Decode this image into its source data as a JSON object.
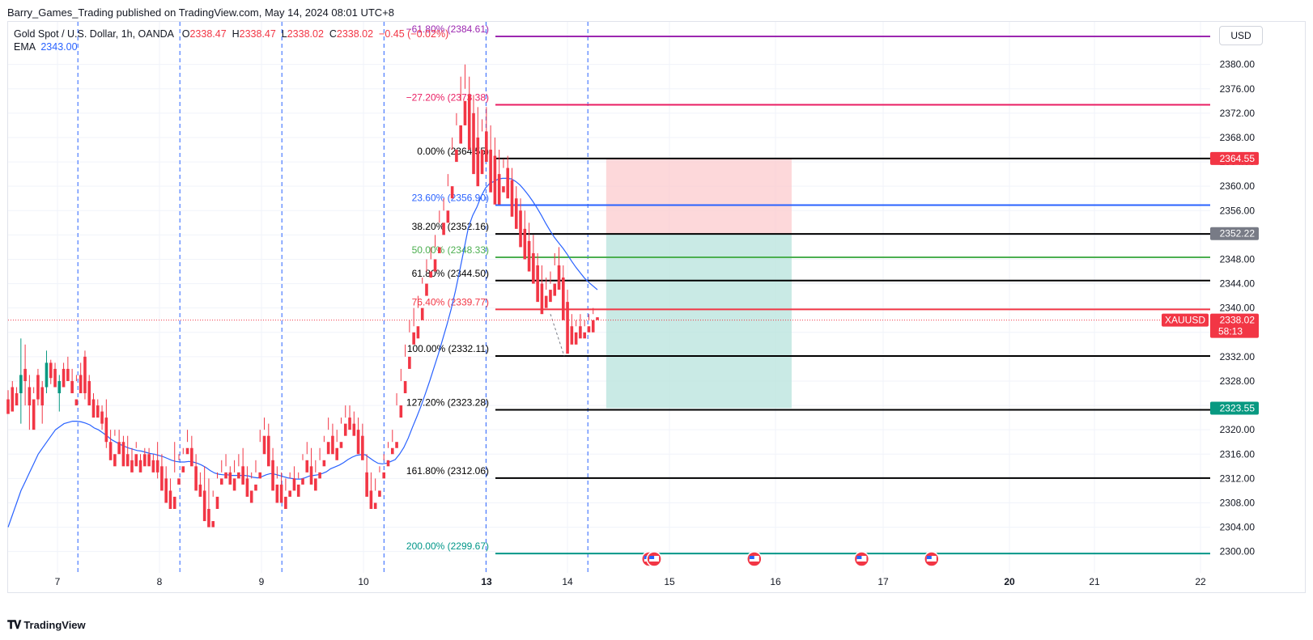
{
  "header": {
    "published": "Barry_Games_Trading published on TradingView.com, May 14, 2024 08:01 UTC+8"
  },
  "legend": {
    "symbol": "Gold Spot / U.S. Dollar, 1h, OANDA",
    "o_label": "O",
    "o_value": "2338.47",
    "h_label": "H",
    "h_value": "2338.47",
    "l_label": "L",
    "l_value": "2338.02",
    "c_label": "C",
    "c_value": "2338.02",
    "change": "−0.45 (−0.02%)",
    "ema_label": "EMA",
    "ema_value": "2343.00"
  },
  "currency": "USD",
  "branding": {
    "name": "TradingView",
    "logo": "tradingview-logo"
  },
  "colors": {
    "up": "#089981",
    "down": "#f23645",
    "ema": "#2962ff",
    "stop_zone": "#fccbcd",
    "target_zone": "#bce5df"
  },
  "chart_data": {
    "type": "candlestick",
    "symbol": "XAUUSD",
    "timeframe": "1h",
    "ylim": [
      2296.5,
      2387
    ],
    "y_ticks": [
      "2300.00",
      "2304.00",
      "2308.00",
      "2312.00",
      "2316.00",
      "2320.00",
      "2324.00",
      "2328.00",
      "2332.00",
      "2336.00",
      "2340.00",
      "2344.00",
      "2348.00",
      "2352.00",
      "2356.00",
      "2360.00",
      "2364.00",
      "2368.00",
      "2372.00",
      "2376.00",
      "2380.00"
    ],
    "x_ticks": [
      {
        "label": "7",
        "day": 7,
        "bold": false
      },
      {
        "label": "8",
        "day": 8,
        "bold": false
      },
      {
        "label": "9",
        "day": 9,
        "bold": false
      },
      {
        "label": "10",
        "day": 10,
        "bold": false
      },
      {
        "label": "13",
        "day": 13,
        "bold": true
      },
      {
        "label": "14",
        "day": 14,
        "bold": false
      },
      {
        "label": "15",
        "day": 15,
        "bold": false
      },
      {
        "label": "16",
        "day": 16,
        "bold": false
      },
      {
        "label": "17",
        "day": 17,
        "bold": false
      },
      {
        "label": "20",
        "day": 20,
        "bold": true
      },
      {
        "label": "21",
        "day": 21,
        "bold": false
      },
      {
        "label": "22",
        "day": 22,
        "bold": false
      }
    ],
    "session_lines": [
      7.2,
      8.2,
      9.2,
      10.2,
      12.98,
      14.2
    ],
    "price": {
      "value": "2338.02",
      "symbol": "XAUUSD",
      "countdown": "58:13"
    },
    "price_labels": [
      {
        "value": "2364.55",
        "y": 2364.55,
        "color": "#f23645"
      },
      {
        "value": "2352.22",
        "y": 2352.22,
        "color": "#787b86"
      },
      {
        "value": "2323.55",
        "y": 2323.55,
        "color": "#089981"
      }
    ],
    "fib_levels": [
      {
        "label": "−61.80% (2384.61)",
        "y": 2384.61,
        "color": "#9c27b0"
      },
      {
        "label": "−27.20% (2373.38)",
        "y": 2373.38,
        "color": "#e91e63"
      },
      {
        "label": "0.00% (2364.55)",
        "y": 2364.55,
        "color": "#000000"
      },
      {
        "label": "23.60% (2356.90)",
        "y": 2356.9,
        "color": "#2962ff"
      },
      {
        "label": "38.20% (2352.16)",
        "y": 2352.16,
        "color": "#000000"
      },
      {
        "label": "50.00% (2348.33)",
        "y": 2348.33,
        "color": "#4caf50"
      },
      {
        "label": "61.80% (2344.50)",
        "y": 2344.5,
        "color": "#000000"
      },
      {
        "label": "76.40% (2339.77)",
        "y": 2339.77,
        "color": "#f23645"
      },
      {
        "label": "100.00% (2332.11)",
        "y": 2332.11,
        "color": "#000000"
      },
      {
        "label": "127.20% (2323.28)",
        "y": 2323.28,
        "color": "#000000"
      },
      {
        "label": "161.80% (2312.06)",
        "y": 2312.06,
        "color": "#000000"
      },
      {
        "label": "200.00% (2299.67)",
        "y": 2299.67,
        "color": "#009688"
      }
    ],
    "position": {
      "entry": 2352.22,
      "stop": 2364.55,
      "target": 2323.55,
      "x_start": 14.38,
      "x_end": 16.15
    },
    "event_days": [
      14.8,
      14.85,
      15.8,
      16.8,
      18.15
    ],
    "candles": [
      [
        2325.0,
        2326.5,
        2323.6,
        2322.6
      ],
      [
        2327.0,
        2328.0,
        2326.0,
        2323.0
      ],
      [
        2326.0,
        2327.0,
        2325.0,
        2324.0
      ],
      [
        2326.0,
        2335.0,
        2321.0,
        2329.0
      ],
      [
        2330.0,
        2334.0,
        2324.0,
        2328.0
      ],
      [
        2327.0,
        2329.0,
        2320.0,
        2324.0
      ],
      [
        2325.0,
        2327.0,
        2326.0,
        2320.0
      ],
      [
        2329.0,
        2330.0,
        2324.0,
        2325.0
      ],
      [
        2327.0,
        2328.0,
        2321.0,
        2324.0
      ],
      [
        2327.0,
        2333.0,
        2326.0,
        2331.0
      ],
      [
        2331.0,
        2331.5,
        2327.5,
        2328.5
      ],
      [
        2330.0,
        2331.0,
        2328.0,
        2327.0
      ],
      [
        2326.0,
        2329.0,
        2323.0,
        2328.0
      ],
      [
        2330.0,
        2331.0,
        2328.0,
        2327.0
      ],
      [
        2330.0,
        2332.0,
        2329.0,
        2328.0
      ],
      [
        2328.0,
        2330.0,
        2327.0,
        2326.0
      ],
      [
        2325.0,
        2329.0,
        2328.0,
        2324.0
      ],
      [
        2329.0,
        2331.0,
        2327.0,
        2326.0
      ],
      [
        2332.0,
        2333.0,
        2325.0,
        2326.0
      ],
      [
        2328.0,
        2329.0,
        2325.0,
        2324.0
      ],
      [
        2325.0,
        2326.0,
        2323.0,
        2322.0
      ],
      [
        2324.0,
        2325.0,
        2323.0,
        2322.0
      ],
      [
        2323.0,
        2324.0,
        2320.0,
        2321.0
      ],
      [
        2322.0,
        2325.0,
        2317.0,
        2318.0
      ],
      [
        2318.0,
        2320.0,
        2316.0,
        2315.0
      ],
      [
        2316.0,
        2319.0,
        2320.0,
        2314.0
      ],
      [
        2318.0,
        2320.0,
        2318.0,
        2316.0
      ],
      [
        2318.0,
        2319.0,
        2315.0,
        2314.0
      ],
      [
        2316.0,
        2319.0,
        2315.0,
        2314.0
      ],
      [
        2315.0,
        2317.0,
        2315.0,
        2313.0
      ],
      [
        2316.0,
        2318.0,
        2317.0,
        2314.0
      ],
      [
        2315.0,
        2316.0,
        2314.0,
        2313.0
      ],
      [
        2316.0,
        2317.0,
        2316.0,
        2314.0
      ],
      [
        2316.0,
        2317.0,
        2315.0,
        2314.0
      ],
      [
        2315.0,
        2316.0,
        2315.0,
        2313.0
      ],
      [
        2315.0,
        2318.0,
        2312.0,
        2313.0
      ],
      [
        2314.0,
        2316.0,
        2313.0,
        2310.0
      ],
      [
        2312.0,
        2314.0,
        2309.0,
        2308.0
      ],
      [
        2310.0,
        2312.0,
        2308.0,
        2307.0
      ],
      [
        2309.0,
        2318.0,
        2313.0,
        2307.0
      ],
      [
        2312.0,
        2316.0,
        2315.0,
        2311.0
      ],
      [
        2314.0,
        2317.0,
        2316.0,
        2313.0
      ],
      [
        2317.0,
        2320.0,
        2318.0,
        2316.0
      ],
      [
        2317.0,
        2319.0,
        2315.0,
        2314.0
      ],
      [
        2314.0,
        2316.0,
        2311.0,
        2310.0
      ],
      [
        2311.0,
        2313.0,
        2310.0,
        2309.0
      ],
      [
        2310.0,
        2314.0,
        2309.0,
        2305.0
      ],
      [
        2307.0,
        2312.0,
        2306.0,
        2304.0
      ],
      [
        2305.0,
        2310.0,
        2309.0,
        2304.0
      ],
      [
        2309.0,
        2313.0,
        2312.0,
        2307.0
      ],
      [
        2312.0,
        2315.0,
        2313.0,
        2311.0
      ],
      [
        2313.0,
        2316.0,
        2314.0,
        2312.0
      ],
      [
        2313.0,
        2314.0,
        2312.0,
        2311.0
      ],
      [
        2312.0,
        2315.0,
        2313.0,
        2310.0
      ],
      [
        2313.0,
        2316.0,
        2314.0,
        2312.0
      ],
      [
        2314.0,
        2317.0,
        2313.0,
        2311.0
      ],
      [
        2312.0,
        2314.0,
        2310.0,
        2309.0
      ],
      [
        2310.0,
        2313.0,
        2312.0,
        2308.0
      ],
      [
        2311.0,
        2315.0,
        2313.0,
        2310.0
      ],
      [
        2313.0,
        2320.0,
        2318.0,
        2312.0
      ],
      [
        2319.0,
        2322.0,
        2320.0,
        2316.0
      ],
      [
        2319.0,
        2321.0,
        2315.0,
        2314.0
      ],
      [
        2315.0,
        2317.0,
        2311.0,
        2310.0
      ],
      [
        2311.0,
        2314.0,
        2312.0,
        2308.0
      ],
      [
        2311.0,
        2313.0,
        2309.0,
        2308.0
      ],
      [
        2309.0,
        2312.0,
        2310.0,
        2307.0
      ],
      [
        2310.0,
        2313.0,
        2312.0,
        2309.0
      ],
      [
        2312.0,
        2314.0,
        2311.0,
        2310.0
      ],
      [
        2311.0,
        2313.0,
        2312.0,
        2309.0
      ],
      [
        2312.0,
        2316.0,
        2315.0,
        2311.0
      ],
      [
        2315.0,
        2318.0,
        2316.0,
        2313.0
      ],
      [
        2314.0,
        2317.0,
        2312.0,
        2311.0
      ],
      [
        2312.0,
        2315.0,
        2313.0,
        2310.0
      ],
      [
        2313.0,
        2317.0,
        2315.0,
        2312.0
      ],
      [
        2315.0,
        2319.0,
        2318.0,
        2314.0
      ],
      [
        2318.0,
        2322.0,
        2320.0,
        2316.0
      ],
      [
        2319.0,
        2321.0,
        2317.0,
        2316.0
      ],
      [
        2317.0,
        2320.0,
        2318.0,
        2315.0
      ],
      [
        2318.0,
        2322.0,
        2321.0,
        2317.0
      ],
      [
        2321.0,
        2324.0,
        2322.0,
        2319.0
      ],
      [
        2322.0,
        2324.0,
        2321.0,
        2320.0
      ],
      [
        2321.0,
        2323.0,
        2320.0,
        2319.0
      ],
      [
        2320.0,
        2322.0,
        2319.0,
        2316.0
      ],
      [
        2319.0,
        2321.0,
        2318.0,
        2315.0
      ],
      [
        2313.0,
        2316.0,
        2310.0,
        2309.0
      ],
      [
        2310.0,
        2313.0,
        2308.0,
        2307.0
      ],
      [
        2308.0,
        2312.0,
        2310.0,
        2307.0
      ],
      [
        2310.0,
        2314.0,
        2313.0,
        2309.0
      ],
      [
        2313.0,
        2316.0,
        2315.0,
        2312.0
      ],
      [
        2315.0,
        2318.0,
        2317.0,
        2314.0
      ],
      [
        2317.0,
        2320.0,
        2318.0,
        2316.0
      ],
      [
        2318.0,
        2326.0,
        2324.0,
        2317.0
      ],
      [
        2324.0,
        2330.0,
        2328.0,
        2322.0
      ],
      [
        2328.0,
        2334.0,
        2332.0,
        2326.0
      ],
      [
        2332.0,
        2338.0,
        2336.0,
        2330.0
      ],
      [
        2336.0,
        2340.0,
        2337.0,
        2334.0
      ],
      [
        2337.0,
        2342.0,
        2340.0,
        2335.0
      ],
      [
        2340.0,
        2345.0,
        2344.0,
        2338.0
      ],
      [
        2344.0,
        2348.0,
        2346.0,
        2342.0
      ],
      [
        2346.0,
        2350.0,
        2348.0,
        2345.0
      ],
      [
        2348.0,
        2352.0,
        2350.0,
        2346.0
      ],
      [
        2350.0,
        2356.0,
        2354.0,
        2349.0
      ],
      [
        2354.0,
        2358.0,
        2356.0,
        2352.0
      ],
      [
        2356.0,
        2362.0,
        2360.0,
        2354.0
      ],
      [
        2360.0,
        2368.0,
        2366.0,
        2358.0
      ],
      [
        2366.0,
        2372.0,
        2370.0,
        2364.0
      ],
      [
        2370.0,
        2378.0,
        2374.0,
        2367.0
      ],
      [
        2374.0,
        2380.0,
        2376.0,
        2370.0
      ],
      [
        2375.0,
        2378.0,
        2372.0,
        2366.0
      ],
      [
        2372.0,
        2375.0,
        2369.0,
        2362.0
      ],
      [
        2368.0,
        2373.0,
        2366.0,
        2360.0
      ],
      [
        2366.0,
        2371.0,
        2369.0,
        2362.0
      ],
      [
        2369.0,
        2373.0,
        2368.0,
        2364.0
      ],
      [
        2366.0,
        2370.0,
        2365.0,
        2359.0
      ],
      [
        2365.0,
        2368.0,
        2363.0,
        2357.0
      ],
      [
        2362.0,
        2366.0,
        2360.0,
        2357.0
      ],
      [
        2360.0,
        2364.5,
        2363.0,
        2359.0
      ],
      [
        2363.0,
        2365.0,
        2361.0,
        2358.0
      ],
      [
        2361.0,
        2363.0,
        2358.0,
        2355.0
      ],
      [
        2358.0,
        2360.0,
        2356.0,
        2353.0
      ],
      [
        2356.0,
        2358.0,
        2353.0,
        2350.0
      ],
      [
        2353.0,
        2356.0,
        2351.0,
        2348.0
      ],
      [
        2351.0,
        2354.0,
        2349.0,
        2346.0
      ],
      [
        2349.0,
        2352.0,
        2347.0,
        2344.0
      ],
      [
        2347.0,
        2349.0,
        2344.0,
        2341.0
      ],
      [
        2344.0,
        2347.0,
        2342.0,
        2339.0
      ],
      [
        2342.0,
        2345.0,
        2343.0,
        2340.0
      ],
      [
        2343.0,
        2346.0,
        2344.0,
        2341.0
      ],
      [
        2344.0,
        2349.0,
        2347.0,
        2342.0
      ],
      [
        2347.0,
        2350.0,
        2345.0,
        2343.0
      ],
      [
        2345.0,
        2347.0,
        2341.0,
        2338.0
      ],
      [
        2341.0,
        2343.0,
        2337.0,
        2332.5
      ],
      [
        2337.0,
        2339.0,
        2336.0,
        2334.0
      ],
      [
        2336.0,
        2338.0,
        2337.0,
        2334.0
      ],
      [
        2337.0,
        2339.0,
        2336.0,
        2335.0
      ],
      [
        2336.0,
        2338.0,
        2337.0,
        2335.0
      ],
      [
        2337.0,
        2339.0,
        2338.0,
        2336.0
      ],
      [
        2338.0,
        2340.0,
        2339.0,
        2336.0
      ],
      [
        2338.47,
        2338.47,
        2338.02,
        2338.02
      ]
    ],
    "ema": [
      2304,
      2306,
      2308,
      2310,
      2311.5,
      2313,
      2314.5,
      2316,
      2317,
      2318,
      2319,
      2320,
      2320.5,
      2321,
      2321.2,
      2321.4,
      2321.4,
      2321.3,
      2321.1,
      2320.8,
      2320.3,
      2320,
      2319.5,
      2319,
      2318.4,
      2318,
      2317.6,
      2317.3,
      2317,
      2316.8,
      2316.6,
      2316.5,
      2316.3,
      2316.1,
      2316,
      2315.8,
      2315.6,
      2315.3,
      2315,
      2314.8,
      2314.7,
      2314.7,
      2314.8,
      2314.7,
      2314.5,
      2314.2,
      2313.8,
      2313.3,
      2312.9,
      2312.7,
      2312.6,
      2312.6,
      2312.5,
      2312.5,
      2312.5,
      2312.5,
      2312.4,
      2312.2,
      2312.1,
      2312.3,
      2312.6,
      2312.8,
      2312.7,
      2312.5,
      2312.3,
      2312.1,
      2312.0,
      2311.9,
      2311.9,
      2312.1,
      2312.4,
      2312.5,
      2312.6,
      2312.8,
      2313.1,
      2313.6,
      2313.9,
      2314.2,
      2314.6,
      2315.1,
      2315.5,
      2315.8,
      2315.9,
      2315.9,
      2315.4,
      2314.9,
      2314.5,
      2314.4,
      2314.5,
      2314.8,
      2315.1,
      2316,
      2317.1,
      2318.6,
      2320.4,
      2322.1,
      2323.9,
      2325.9,
      2328,
      2330.2,
      2332.4,
      2334.8,
      2337.2,
      2339.8,
      2342.8,
      2346.2,
      2349.7,
      2353.2,
      2355.2,
      2356.6,
      2358.4,
      2359.7,
      2360.5,
      2360.8,
      2361.2,
      2361.3,
      2361.3,
      2361.2,
      2360.8,
      2360.2,
      2359.4,
      2358.5,
      2357.5,
      2356.4,
      2355.2,
      2353.9,
      2352.7,
      2351.6,
      2350.7,
      2349.8,
      2348.8,
      2347.7,
      2346.7,
      2345.8,
      2344.9,
      2344.2,
      2343.6,
      2343.0
    ]
  }
}
